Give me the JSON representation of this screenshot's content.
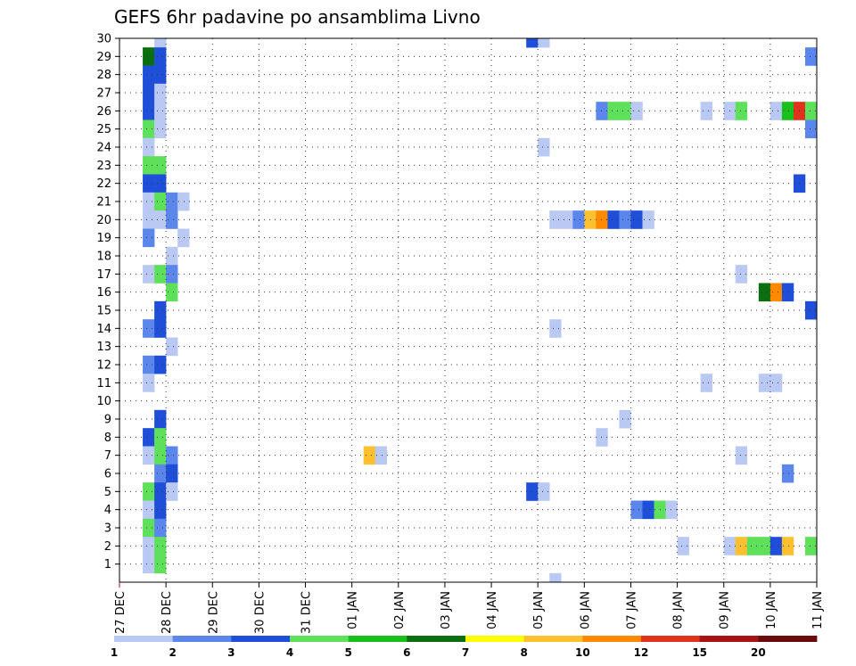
{
  "chart_data": {
    "type": "heatmap",
    "title": "GEFS 6hr padavine po ansamblima Livno",
    "xlabel": "",
    "ylabel": "",
    "x_axis": {
      "start_day": 27,
      "end_day": 11,
      "ticks": [
        {
          "day": 0,
          "label": "27 DEC"
        },
        {
          "day": 1,
          "label": "28 DEC"
        },
        {
          "day": 2,
          "label": "29 DEC"
        },
        {
          "day": 3,
          "label": "30 DEC"
        },
        {
          "day": 4,
          "label": "31 DEC"
        },
        {
          "day": 5,
          "label": "01 JAN"
        },
        {
          "day": 6,
          "label": "02 JAN"
        },
        {
          "day": 7,
          "label": "03 JAN"
        },
        {
          "day": 8,
          "label": "04 JAN"
        },
        {
          "day": 9,
          "label": "05 JAN"
        },
        {
          "day": 10,
          "label": "06 JAN"
        },
        {
          "day": 11,
          "label": "07 JAN"
        },
        {
          "day": 12,
          "label": "08 JAN"
        },
        {
          "day": 13,
          "label": "09 JAN"
        },
        {
          "day": 14,
          "label": "10 JAN"
        },
        {
          "day": 15,
          "label": "11 JAN"
        }
      ]
    },
    "y_axis": {
      "range": [
        0,
        30
      ],
      "ticks": [
        "1",
        "2",
        "3",
        "4",
        "5",
        "6",
        "7",
        "8",
        "9",
        "10",
        "11",
        "12",
        "13",
        "14",
        "15",
        "16",
        "17",
        "18",
        "19",
        "20",
        "21",
        "22",
        "23",
        "24",
        "25",
        "26",
        "27",
        "28",
        "29",
        "30"
      ]
    },
    "grid": true,
    "colorbar": {
      "labels": [
        "1",
        "2",
        "3",
        "4",
        "5",
        "6",
        "7",
        "8",
        "10",
        "12",
        "15",
        "20"
      ],
      "colors": [
        "#b9c9f4",
        "#5b86ec",
        "#1f4fd9",
        "#5fe05a",
        "#18c01c",
        "#0b6e0f",
        "#ffff00",
        "#ffc030",
        "#ff8a00",
        "#e0321c",
        "#a81212",
        "#6b0a0a"
      ]
    },
    "cells": [
      [
        0.5,
        29,
        6
      ],
      [
        0.5,
        28,
        3
      ],
      [
        0.5,
        27,
        3
      ],
      [
        0.5,
        26,
        3
      ],
      [
        0.5,
        25,
        4
      ],
      [
        0.5,
        24,
        1
      ],
      [
        0.5,
        23,
        4
      ],
      [
        0.5,
        22,
        3
      ],
      [
        0.5,
        21,
        1
      ],
      [
        0.5,
        20,
        1
      ],
      [
        0.5,
        19,
        2
      ],
      [
        0.5,
        17,
        1
      ],
      [
        0.5,
        14,
        2
      ],
      [
        0.5,
        12,
        2
      ],
      [
        0.5,
        11,
        1
      ],
      [
        0.5,
        8,
        3
      ],
      [
        0.5,
        7,
        1
      ],
      [
        0.5,
        5,
        4
      ],
      [
        0.5,
        4,
        1
      ],
      [
        0.5,
        3,
        4
      ],
      [
        0.5,
        2,
        1
      ],
      [
        0.5,
        1,
        1
      ],
      [
        0.75,
        30,
        1
      ],
      [
        0.75,
        29,
        3
      ],
      [
        0.75,
        28,
        3
      ],
      [
        0.75,
        27,
        1
      ],
      [
        0.75,
        26,
        1
      ],
      [
        0.75,
        25,
        1
      ],
      [
        0.75,
        23,
        4
      ],
      [
        0.75,
        22,
        3
      ],
      [
        0.75,
        21,
        4
      ],
      [
        0.75,
        20,
        1
      ],
      [
        0.75,
        17,
        4
      ],
      [
        0.75,
        15,
        3
      ],
      [
        0.75,
        14,
        3
      ],
      [
        0.75,
        12,
        3
      ],
      [
        0.75,
        9,
        3
      ],
      [
        0.75,
        8,
        4
      ],
      [
        0.75,
        7,
        4
      ],
      [
        0.75,
        6,
        2
      ],
      [
        0.75,
        5,
        3
      ],
      [
        0.75,
        4,
        3
      ],
      [
        0.75,
        3,
        2
      ],
      [
        0.75,
        2,
        4
      ],
      [
        0.75,
        1,
        4
      ],
      [
        1.0,
        21,
        2
      ],
      [
        1.0,
        20,
        2
      ],
      [
        1.0,
        18,
        1
      ],
      [
        1.0,
        17,
        2
      ],
      [
        1.0,
        16,
        4
      ],
      [
        1.0,
        13,
        1
      ],
      [
        1.0,
        7,
        2
      ],
      [
        1.0,
        6,
        3
      ],
      [
        1.0,
        5,
        1
      ],
      [
        1.25,
        21,
        1
      ],
      [
        1.25,
        19,
        1
      ],
      [
        5.25,
        7,
        8
      ],
      [
        5.5,
        7,
        1
      ],
      [
        8.75,
        30,
        3
      ],
      [
        8.75,
        5,
        3
      ],
      [
        9.0,
        30,
        1
      ],
      [
        9.0,
        24,
        1
      ],
      [
        9.0,
        5,
        1
      ],
      [
        9.25,
        20,
        1
      ],
      [
        9.25,
        14,
        1
      ],
      [
        9.25,
        0,
        1
      ],
      [
        9.5,
        20,
        1
      ],
      [
        9.75,
        20,
        2
      ],
      [
        10.0,
        20,
        8
      ],
      [
        10.25,
        20,
        9
      ],
      [
        10.25,
        26,
        2
      ],
      [
        10.5,
        20,
        3
      ],
      [
        10.5,
        26,
        4
      ],
      [
        10.75,
        20,
        2
      ],
      [
        10.75,
        26,
        4
      ],
      [
        11.0,
        20,
        3
      ],
      [
        11.0,
        26,
        1
      ],
      [
        11.25,
        20,
        1
      ],
      [
        10.25,
        8,
        1
      ],
      [
        10.75,
        9,
        1
      ],
      [
        11.0,
        4,
        2
      ],
      [
        11.25,
        4,
        3
      ],
      [
        11.5,
        4,
        4
      ],
      [
        11.75,
        4,
        1
      ],
      [
        12.0,
        2,
        1
      ],
      [
        12.5,
        26,
        1
      ],
      [
        12.5,
        11,
        1
      ],
      [
        13.0,
        26,
        1
      ],
      [
        13.0,
        2,
        1
      ],
      [
        13.25,
        26,
        4
      ],
      [
        13.25,
        17,
        1
      ],
      [
        13.25,
        7,
        1
      ],
      [
        13.25,
        2,
        8
      ],
      [
        13.5,
        2,
        4
      ],
      [
        13.75,
        2,
        4
      ],
      [
        13.75,
        16,
        6
      ],
      [
        13.75,
        11,
        1
      ],
      [
        14.0,
        16,
        9
      ],
      [
        14.0,
        11,
        1
      ],
      [
        14.0,
        26,
        1
      ],
      [
        14.0,
        2,
        3
      ],
      [
        14.25,
        16,
        3
      ],
      [
        14.25,
        26,
        5
      ],
      [
        14.25,
        6,
        2
      ],
      [
        14.25,
        2,
        8
      ],
      [
        14.5,
        26,
        10
      ],
      [
        14.5,
        22,
        3
      ],
      [
        14.75,
        26,
        4
      ],
      [
        14.75,
        2,
        4
      ],
      [
        14.75,
        29,
        2
      ],
      [
        14.75,
        25,
        2
      ],
      [
        14.75,
        15,
        3
      ]
    ]
  }
}
